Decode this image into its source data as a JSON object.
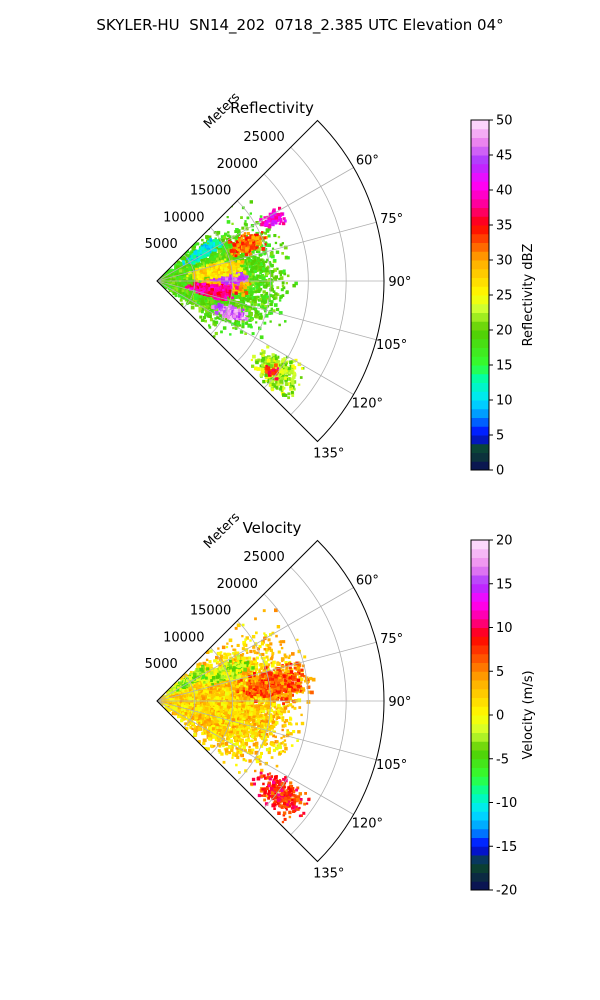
{
  "figure": {
    "title": "SKYLER-HU  SN14_202  0718_2.385 UTC Elevation 04°"
  },
  "chart_data": [
    {
      "type": "heatmap",
      "title": "Reflectivity",
      "radial_label": "Meters",
      "radial_ticks": [
        5000,
        10000,
        15000,
        20000,
        25000
      ],
      "radial_range": [
        0,
        30000
      ],
      "angular_ticks": [
        60,
        75,
        90,
        105,
        120,
        135
      ],
      "angular_range": [
        45,
        135
      ],
      "grid": true,
      "colorbar": {
        "label": "Reflectivity dBZ",
        "range": [
          0,
          50
        ],
        "ticks": [
          0,
          5,
          10,
          15,
          20,
          25,
          30,
          35,
          40,
          45,
          50
        ],
        "stops": [
          {
            "value": 0,
            "color": "#0a0a5a"
          },
          {
            "value": 3,
            "color": "#0b4a2a"
          },
          {
            "value": 5,
            "color": "#0000ff"
          },
          {
            "value": 8,
            "color": "#0099ff"
          },
          {
            "value": 10,
            "color": "#00e5ff"
          },
          {
            "value": 13,
            "color": "#00ffaa"
          },
          {
            "value": 15,
            "color": "#33ff33"
          },
          {
            "value": 20,
            "color": "#55cc00"
          },
          {
            "value": 23,
            "color": "#ccff33"
          },
          {
            "value": 25,
            "color": "#ffff00"
          },
          {
            "value": 30,
            "color": "#ffaa00"
          },
          {
            "value": 35,
            "color": "#ff0000"
          },
          {
            "value": 38,
            "color": "#ff0099"
          },
          {
            "value": 41,
            "color": "#ff00ff"
          },
          {
            "value": 44,
            "color": "#aa33ff"
          },
          {
            "value": 47,
            "color": "#ee88ee"
          },
          {
            "value": 50,
            "color": "#ffe8ff"
          }
        ]
      },
      "blobs": [
        {
          "az": 88,
          "range": 6000,
          "spread_az": 32,
          "spread_r": 9000,
          "value": 19
        },
        {
          "az": 92,
          "range": 9000,
          "spread_az": 6,
          "spread_r": 3000,
          "value": 30
        },
        {
          "az": 88,
          "range": 10000,
          "spread_az": 4,
          "spread_r": 2000,
          "value": 44
        },
        {
          "az": 100,
          "range": 7500,
          "spread_az": 6,
          "spread_r": 2500,
          "value": 38
        },
        {
          "az": 113,
          "range": 10500,
          "spread_az": 4,
          "spread_r": 2000,
          "value": 46
        },
        {
          "az": 80,
          "range": 8000,
          "spread_az": 6,
          "spread_r": 3000,
          "value": 27
        },
        {
          "az": 62,
          "range": 17500,
          "spread_az": 3,
          "spread_r": 1500,
          "value": 40
        },
        {
          "az": 67,
          "range": 13000,
          "spread_az": 5,
          "spread_r": 2000,
          "value": 32
        },
        {
          "az": 58,
          "range": 7000,
          "spread_az": 5,
          "spread_r": 2500,
          "value": 11
        },
        {
          "az": 127,
          "range": 20000,
          "spread_az": 6,
          "spread_r": 3000,
          "value": 22
        },
        {
          "az": 128,
          "range": 19500,
          "spread_az": 2,
          "spread_r": 1000,
          "value": 35
        }
      ]
    },
    {
      "type": "heatmap",
      "title": "Velocity",
      "radial_label": "Meters",
      "radial_ticks": [
        5000,
        10000,
        15000,
        20000,
        25000
      ],
      "radial_range": [
        0,
        30000
      ],
      "angular_ticks": [
        60,
        75,
        90,
        105,
        120,
        135
      ],
      "angular_range": [
        45,
        135
      ],
      "grid": true,
      "colorbar": {
        "label": "Velocity (m/s)",
        "range": [
          -20,
          20
        ],
        "ticks": [
          -20,
          -15,
          -10,
          -5,
          0,
          5,
          10,
          15,
          20
        ],
        "stops": [
          {
            "value": -20,
            "color": "#0a0a5a"
          },
          {
            "value": -17,
            "color": "#0b4a2a"
          },
          {
            "value": -15,
            "color": "#0000ff"
          },
          {
            "value": -13,
            "color": "#0099ff"
          },
          {
            "value": -11,
            "color": "#00e5ff"
          },
          {
            "value": -9,
            "color": "#00ffaa"
          },
          {
            "value": -7,
            "color": "#33ff33"
          },
          {
            "value": -4,
            "color": "#55cc00"
          },
          {
            "value": -2,
            "color": "#ccff33"
          },
          {
            "value": 0,
            "color": "#ffff00"
          },
          {
            "value": 4,
            "color": "#ffaa00"
          },
          {
            "value": 9,
            "color": "#ff0000"
          },
          {
            "value": 11,
            "color": "#ff0099"
          },
          {
            "value": 13,
            "color": "#ff00ff"
          },
          {
            "value": 15,
            "color": "#aa33ff"
          },
          {
            "value": 17,
            "color": "#ee88ee"
          },
          {
            "value": 20,
            "color": "#ffe8ff"
          }
        ]
      },
      "blobs": [
        {
          "az": 90,
          "range": 8000,
          "spread_az": 32,
          "spread_r": 9000,
          "value": 2
        },
        {
          "az": 82,
          "range": 16000,
          "spread_az": 7,
          "spread_r": 4000,
          "value": 6
        },
        {
          "az": 68,
          "range": 10000,
          "spread_az": 5,
          "spread_r": 3000,
          "value": -2
        },
        {
          "az": 58,
          "range": 5000,
          "spread_az": 6,
          "spread_r": 2500,
          "value": -3
        },
        {
          "az": 127,
          "range": 20500,
          "spread_az": 5,
          "spread_r": 3000,
          "value": 8
        }
      ]
    }
  ]
}
